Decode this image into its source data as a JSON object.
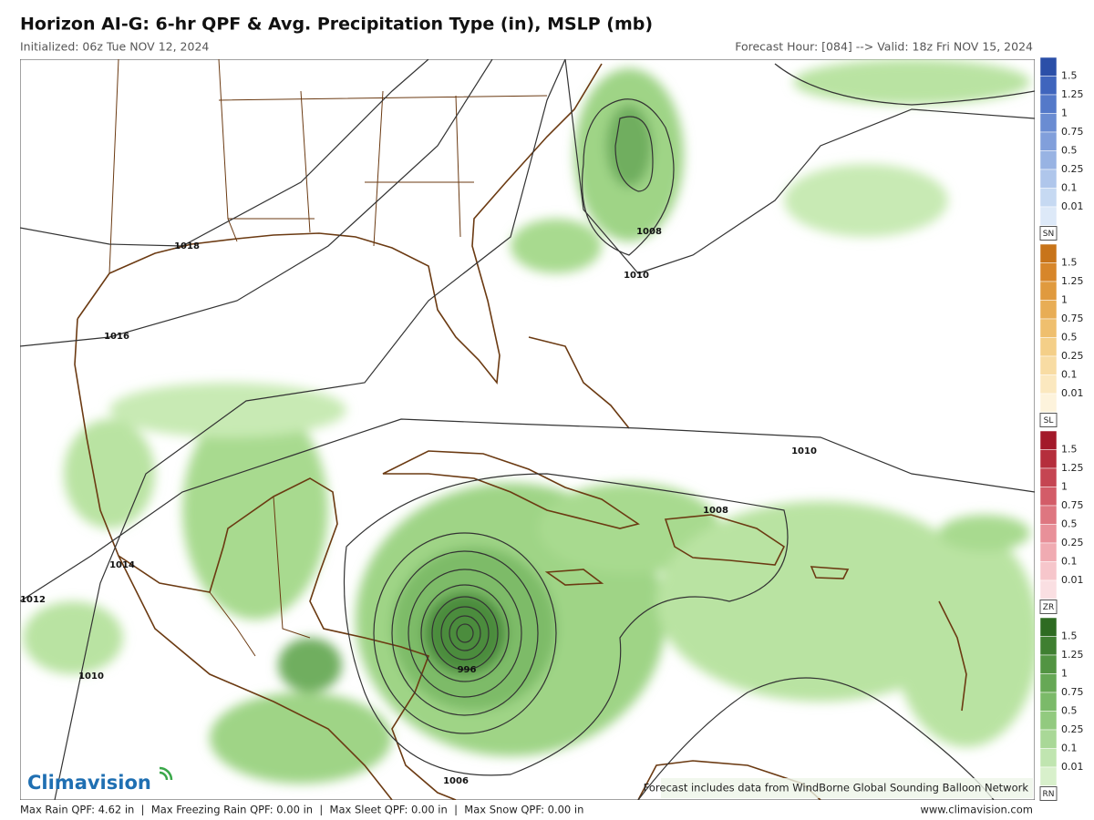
{
  "header": {
    "title": "Horizon AI-G: 6-hr QPF & Avg. Precipitation Type (in), MSLP (mb)",
    "initialized": "Initialized: 06z Tue NOV 12, 2024",
    "forecast": "Forecast Hour: [084] --> Valid: 18z Fri NOV 15, 2024"
  },
  "isobar_labels": [
    "1018",
    "1016",
    "1014",
    "1012",
    "1010",
    "1008",
    "1010",
    "1010",
    "1008",
    "996",
    "1006"
  ],
  "legend": {
    "levels": [
      "1.5",
      "1.25",
      "1",
      "0.75",
      "0.5",
      "0.25",
      "0.1",
      "0.01"
    ],
    "types": [
      "SN",
      "SL",
      "ZR",
      "RN"
    ]
  },
  "logo": "Climavision",
  "note": "Forecast includes data from WindBorne Global Sounding Balloon Network",
  "footer": {
    "stats": "Max Rain QPF: 4.62 in  |  Max Freezing Rain QPF: 0.00 in  |  Max Sleet QPF: 0.00 in  |  Max Snow QPF: 0.00 in",
    "url": "www.climavision.com"
  }
}
